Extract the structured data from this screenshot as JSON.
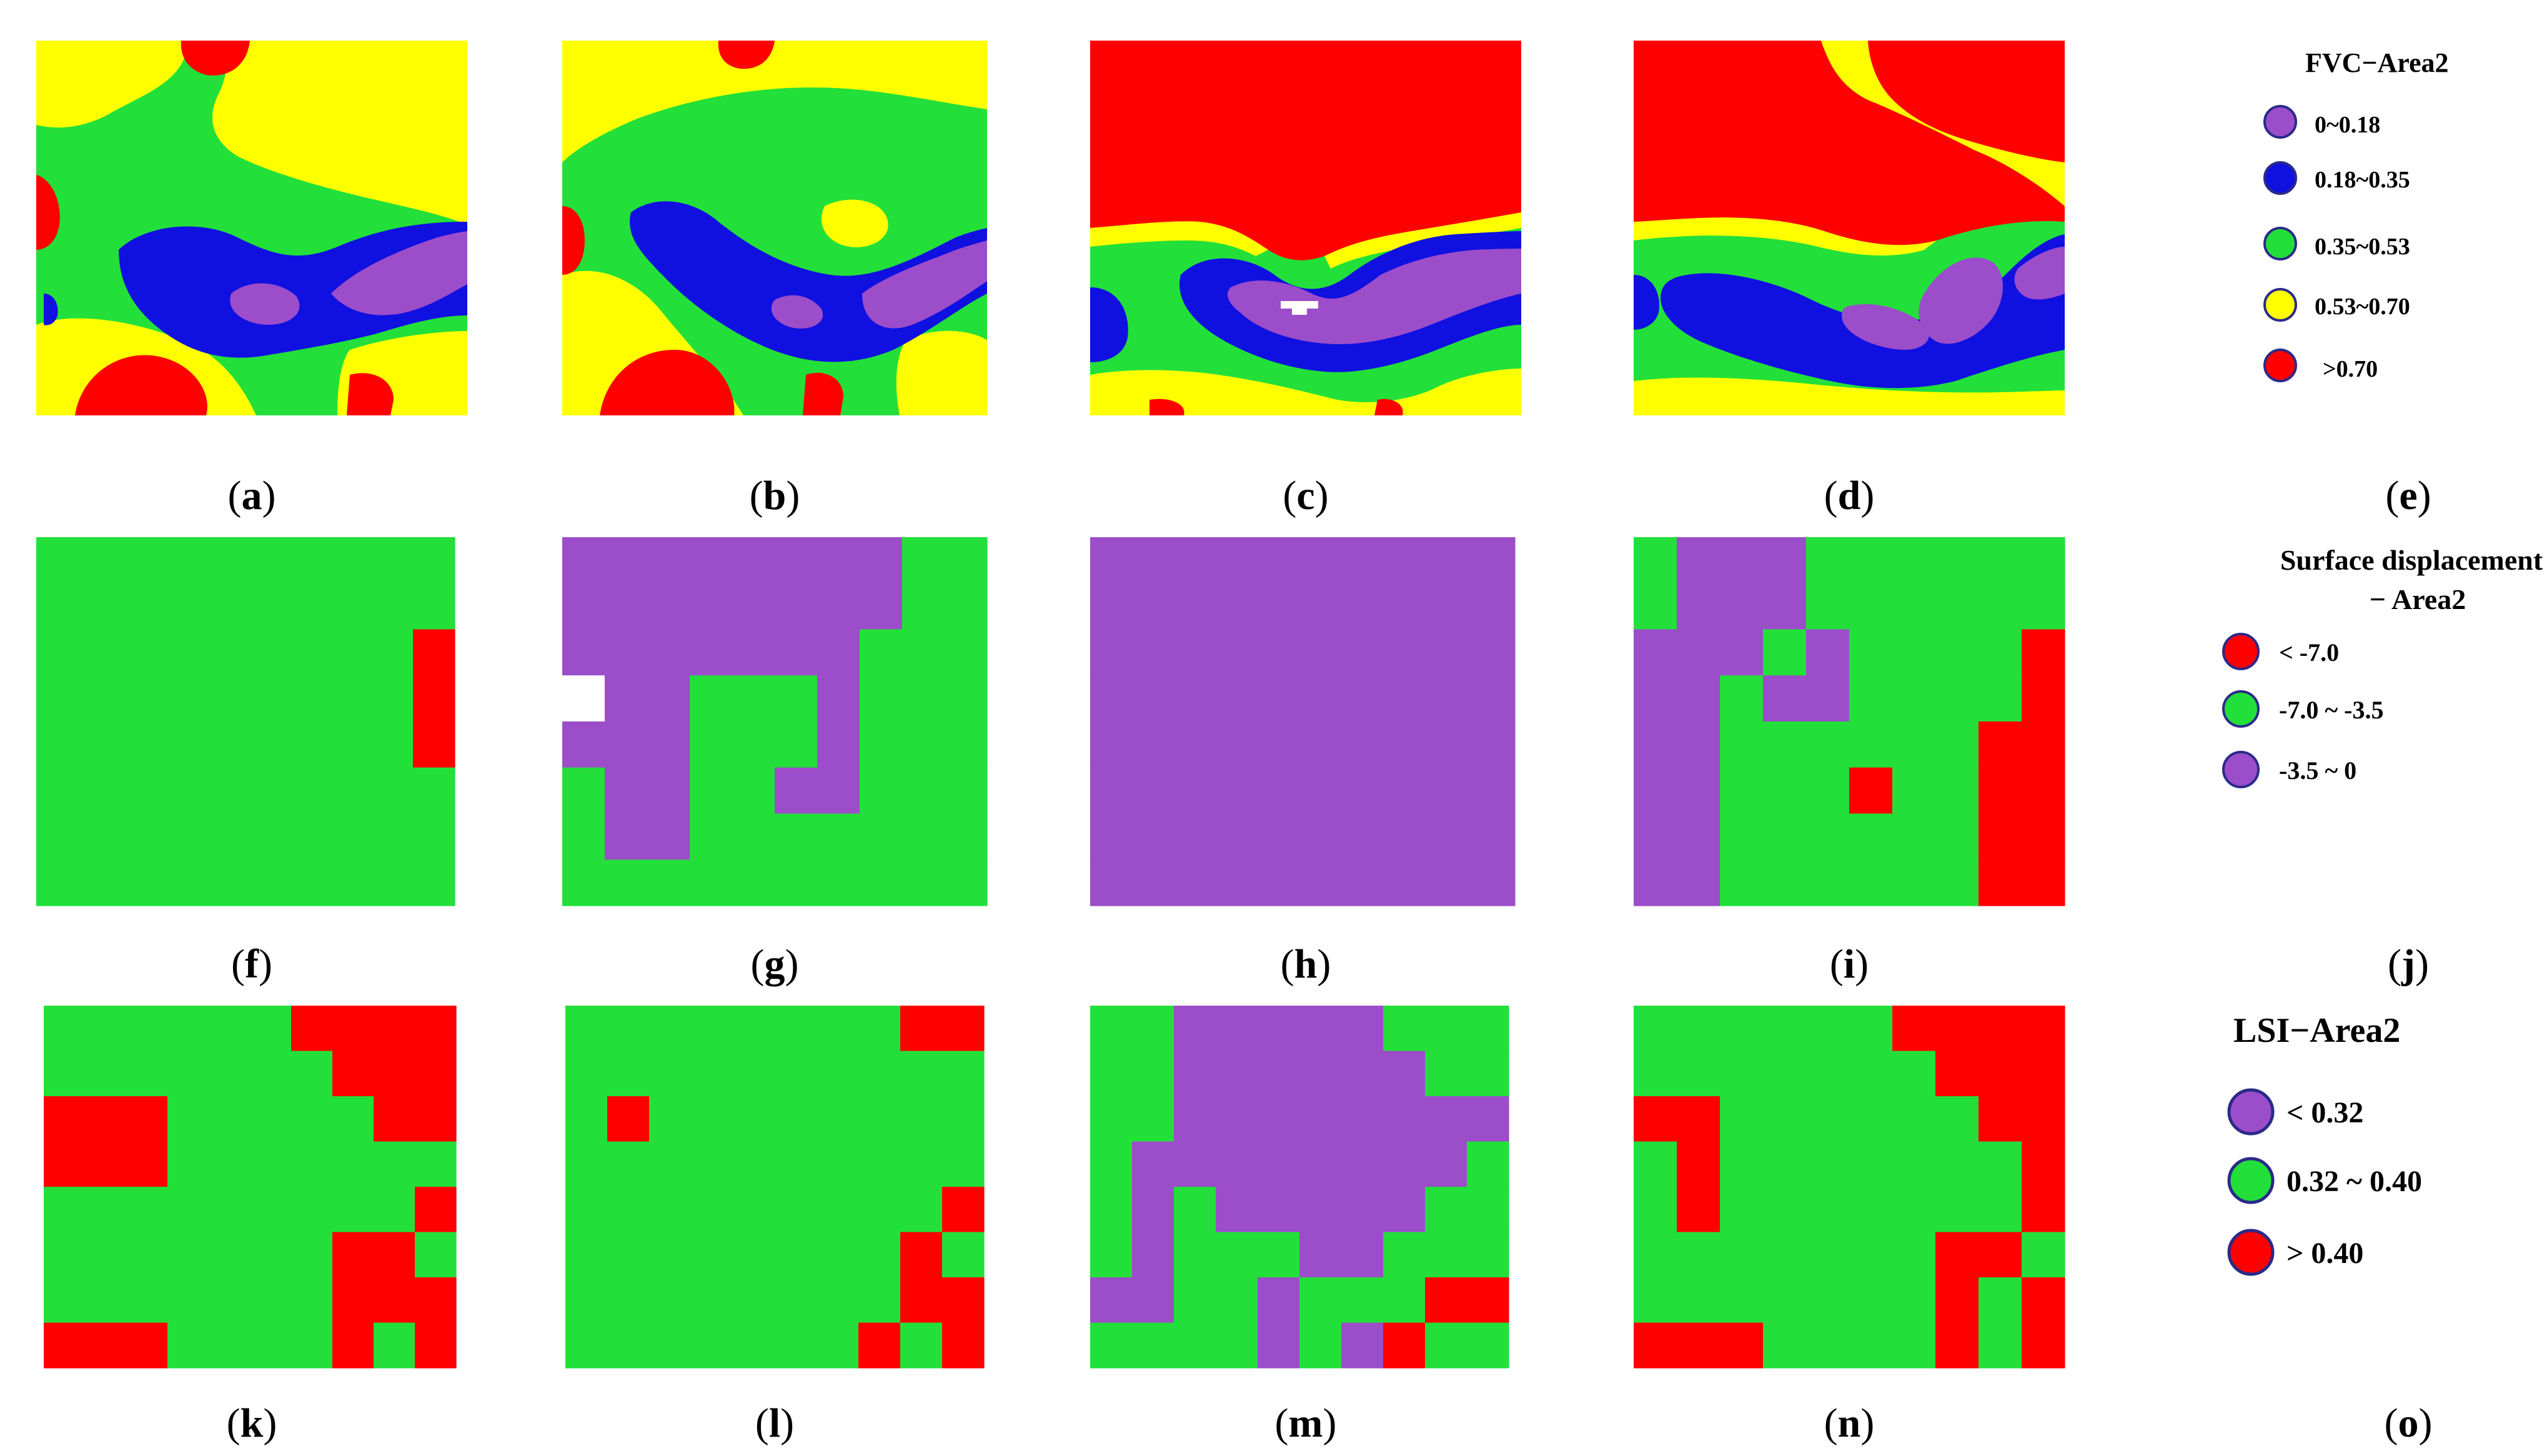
{
  "colors": {
    "purple": "#9b4dca",
    "blue": "#1010e0",
    "green": "#22e039",
    "yellow": "#ffff00",
    "red": "#ff0000",
    "white": "#ffffff"
  },
  "captions": {
    "a": "a",
    "b": "b",
    "c": "c",
    "d": "d",
    "e": "e",
    "f": "f",
    "g": "g",
    "h": "h",
    "i": "i",
    "j": "j",
    "k": "k",
    "l": "l",
    "m": "m",
    "n": "n",
    "o": "o"
  },
  "legend_fvc": {
    "title": "FVC−Area2",
    "items": [
      {
        "label": "0~0.18",
        "color": "#9b4dca"
      },
      {
        "label": "0.18~0.35",
        "color": "#1010e0"
      },
      {
        "label": "0.35~0.53",
        "color": "#22e039"
      },
      {
        "label": "0.53~0.70",
        "color": "#ffff00"
      },
      {
        "label": ">0.70",
        "color": "#ff0000"
      }
    ]
  },
  "legend_sd": {
    "title_line1": "Surface displacement",
    "title_line2": "− Area2",
    "items": [
      {
        "label": "< -7.0",
        "color": "#ff0000"
      },
      {
        "label": "-7.0 ~ -3.5",
        "color": "#22e039"
      },
      {
        "label": "-3.5 ~ 0",
        "color": "#9b4dca"
      }
    ]
  },
  "legend_lsi": {
    "title": "LSI−Area2",
    "items": [
      {
        "label": "< 0.32",
        "color": "#9b4dca"
      },
      {
        "label": "0.32 ~ 0.40",
        "color": "#22e039"
      },
      {
        "label": "> 0.40",
        "color": "#ff0000"
      }
    ]
  },
  "grids": {
    "f": [
      "GGGGGGGGGG",
      "GGGGGGGGGG",
      "GGGGGGGGGR",
      "GGGGGGGGGR",
      "GGGGGGGGGR",
      "GGGGGGGGGG",
      "GGGGGGGGGG",
      "GGGGGGGGGG"
    ],
    "g": [
      "PPPPPPPPGG",
      "PPPPPPPPGG",
      "PPPPPPPGGG",
      "WPPGGGPGGG",
      "PPPGGGPGGG",
      "GPPGGPPGGG",
      "GPPGGGGGGG",
      "GGGGGGGGGG"
    ],
    "h": [
      "PPPPPPPPPP",
      "PPPPPPPPPP",
      "PPPPPPPPPP",
      "PPPPPPPPPP",
      "PPPPPPPPPP",
      "PPPPPPPPPP",
      "PPPPPPPPPP",
      "PPPPPPPPPP"
    ],
    "i": [
      "GPPPGGGGGG",
      "GPPPGGGGGG",
      "PPPGPGGGGR",
      "PPGPPGGGGR",
      "PPGGGGGGRR",
      "PPGGGRGGRR",
      "PPGGGGGGRR",
      "PPGGGGGGRR"
    ],
    "k": [
      "GGGGGGRRRR",
      "GGGGGGGRRR",
      "RRRGGGGGRR",
      "RRRGGGGGGG",
      "GGGGGGGGGR",
      "GGGGGGGRRG",
      "GGGGGGGRRR",
      "RRRGGGGRGR"
    ],
    "l": [
      "GGGGGGGGRR",
      "GGGGGGGGGG",
      "GRGGGGGGGG",
      "GGGGGGGGGG",
      "GGGGGGGGGR",
      "GGGGGGGGRG",
      "GGGGGGGGRR",
      "GGGGGGGRGR"
    ],
    "m": [
      "GGPPPPPGGG",
      "GGPPPPPPGG",
      "GGPPPPPPPP",
      "GPPPPPPPPG",
      "GPGPPPPPGG",
      "GPGGGPPGGG",
      "PPGGPGGGRR",
      "GGGGPGPRGG"
    ],
    "n": [
      "GGGGGGRRRR",
      "GGGGGGGRRR",
      "RRGGGGGGRR",
      "GRGGGGGGGR",
      "GRGGGGGGGR",
      "GGGGGGGRRG",
      "GGGGGGGRGR",
      "RRRGGGGRGR"
    ]
  }
}
